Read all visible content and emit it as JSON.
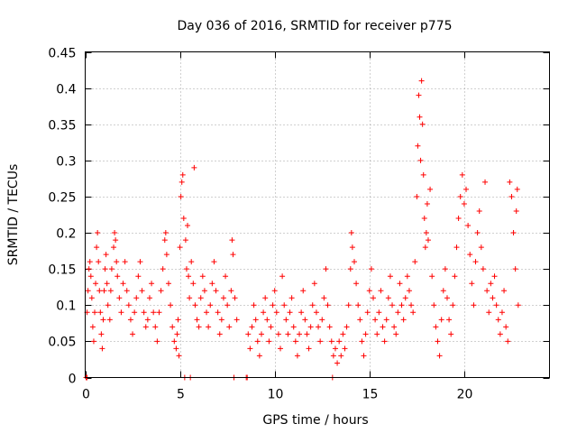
{
  "chart_data": {
    "type": "scatter",
    "title": "Day 036 of 2016, SRMTID for receiver p775",
    "xlabel": "GPS time / hours",
    "ylabel": "SRMTID / TECUs",
    "xlim": [
      0,
      24.5
    ],
    "ylim": [
      0,
      0.45
    ],
    "xticks": [
      0,
      5,
      10,
      15,
      20
    ],
    "xtick_labels": [
      "0",
      "5",
      "10",
      "15",
      "20"
    ],
    "yticks": [
      0,
      0.05,
      0.1,
      0.15,
      0.2,
      0.25,
      0.3,
      0.35,
      0.4,
      0.45
    ],
    "ytick_labels": [
      "0",
      "0.05",
      "0.1",
      "0.15",
      "0.2",
      "0.25",
      "0.3",
      "0.35",
      "0.4",
      "0.45"
    ],
    "grid": true,
    "marker": "+",
    "color": "#ff0000",
    "series": [
      {
        "name": "SRMTID",
        "points": [
          [
            0.05,
            0.0
          ],
          [
            0.1,
            0.0
          ],
          [
            0.1,
            0.09
          ],
          [
            0.15,
            0.12
          ],
          [
            0.2,
            0.15
          ],
          [
            0.25,
            0.16
          ],
          [
            0.3,
            0.14
          ],
          [
            0.35,
            0.11
          ],
          [
            0.4,
            0.07
          ],
          [
            0.45,
            0.05
          ],
          [
            0.5,
            0.09
          ],
          [
            0.55,
            0.13
          ],
          [
            0.6,
            0.18
          ],
          [
            0.65,
            0.2
          ],
          [
            0.7,
            0.16
          ],
          [
            0.75,
            0.12
          ],
          [
            0.8,
            0.09
          ],
          [
            0.85,
            0.06
          ],
          [
            0.9,
            0.04
          ],
          [
            0.95,
            0.08
          ],
          [
            1.0,
            0.12
          ],
          [
            1.05,
            0.15
          ],
          [
            1.1,
            0.17
          ],
          [
            1.15,
            0.13
          ],
          [
            1.2,
            0.1
          ],
          [
            1.3,
            0.08
          ],
          [
            1.35,
            0.12
          ],
          [
            1.4,
            0.15
          ],
          [
            1.5,
            0.18
          ],
          [
            1.55,
            0.2
          ],
          [
            1.6,
            0.19
          ],
          [
            1.65,
            0.16
          ],
          [
            1.7,
            0.14
          ],
          [
            1.8,
            0.11
          ],
          [
            1.9,
            0.09
          ],
          [
            2.0,
            0.13
          ],
          [
            2.1,
            0.16
          ],
          [
            2.2,
            0.12
          ],
          [
            2.3,
            0.1
          ],
          [
            2.4,
            0.08
          ],
          [
            2.5,
            0.06
          ],
          [
            2.6,
            0.09
          ],
          [
            2.7,
            0.11
          ],
          [
            2.8,
            0.14
          ],
          [
            2.9,
            0.16
          ],
          [
            3.0,
            0.12
          ],
          [
            3.1,
            0.09
          ],
          [
            3.2,
            0.07
          ],
          [
            3.3,
            0.08
          ],
          [
            3.4,
            0.11
          ],
          [
            3.5,
            0.13
          ],
          [
            3.6,
            0.09
          ],
          [
            3.7,
            0.07
          ],
          [
            3.8,
            0.05
          ],
          [
            3.9,
            0.09
          ],
          [
            4.0,
            0.12
          ],
          [
            4.1,
            0.15
          ],
          [
            4.2,
            0.19
          ],
          [
            4.25,
            0.2
          ],
          [
            4.3,
            0.17
          ],
          [
            4.4,
            0.13
          ],
          [
            4.5,
            0.1
          ],
          [
            4.6,
            0.07
          ],
          [
            4.7,
            0.05
          ],
          [
            4.8,
            0.04
          ],
          [
            4.85,
            0.06
          ],
          [
            4.9,
            0.08
          ],
          [
            4.95,
            0.03
          ],
          [
            5.0,
            0.18
          ],
          [
            5.05,
            0.25
          ],
          [
            5.1,
            0.27
          ],
          [
            5.15,
            0.28
          ],
          [
            5.2,
            0.22
          ],
          [
            5.25,
            0.0
          ],
          [
            5.3,
            0.19
          ],
          [
            5.35,
            0.15
          ],
          [
            5.4,
            0.21
          ],
          [
            5.45,
            0.14
          ],
          [
            5.5,
            0.11
          ],
          [
            5.55,
            0.0
          ],
          [
            5.6,
            0.16
          ],
          [
            5.7,
            0.13
          ],
          [
            5.75,
            0.29
          ],
          [
            5.8,
            0.1
          ],
          [
            5.9,
            0.08
          ],
          [
            6.0,
            0.07
          ],
          [
            6.1,
            0.11
          ],
          [
            6.2,
            0.14
          ],
          [
            6.3,
            0.12
          ],
          [
            6.4,
            0.09
          ],
          [
            6.5,
            0.07
          ],
          [
            6.6,
            0.1
          ],
          [
            6.7,
            0.13
          ],
          [
            6.8,
            0.16
          ],
          [
            6.9,
            0.12
          ],
          [
            7.0,
            0.09
          ],
          [
            7.1,
            0.06
          ],
          [
            7.2,
            0.08
          ],
          [
            7.3,
            0.11
          ],
          [
            7.4,
            0.14
          ],
          [
            7.5,
            0.1
          ],
          [
            7.6,
            0.07
          ],
          [
            7.7,
            0.12
          ],
          [
            7.75,
            0.19
          ],
          [
            7.8,
            0.17
          ],
          [
            7.85,
            0.0
          ],
          [
            7.9,
            0.11
          ],
          [
            8.0,
            0.08
          ],
          [
            8.5,
            0.0
          ],
          [
            8.55,
            0.0
          ],
          [
            8.6,
            0.06
          ],
          [
            8.7,
            0.04
          ],
          [
            8.8,
            0.07
          ],
          [
            8.9,
            0.1
          ],
          [
            9.0,
            0.08
          ],
          [
            9.1,
            0.05
          ],
          [
            9.2,
            0.03
          ],
          [
            9.3,
            0.06
          ],
          [
            9.4,
            0.09
          ],
          [
            9.5,
            0.11
          ],
          [
            9.6,
            0.08
          ],
          [
            9.7,
            0.05
          ],
          [
            9.8,
            0.07
          ],
          [
            9.9,
            0.1
          ],
          [
            10.0,
            0.12
          ],
          [
            10.1,
            0.09
          ],
          [
            10.2,
            0.06
          ],
          [
            10.3,
            0.04
          ],
          [
            10.4,
            0.14
          ],
          [
            10.5,
            0.1
          ],
          [
            10.6,
            0.08
          ],
          [
            10.7,
            0.06
          ],
          [
            10.8,
            0.09
          ],
          [
            10.9,
            0.11
          ],
          [
            11.0,
            0.07
          ],
          [
            11.1,
            0.05
          ],
          [
            11.2,
            0.03
          ],
          [
            11.3,
            0.06
          ],
          [
            11.4,
            0.09
          ],
          [
            11.5,
            0.12
          ],
          [
            11.6,
            0.08
          ],
          [
            11.7,
            0.06
          ],
          [
            11.8,
            0.04
          ],
          [
            11.9,
            0.07
          ],
          [
            12.0,
            0.1
          ],
          [
            12.1,
            0.13
          ],
          [
            12.2,
            0.09
          ],
          [
            12.3,
            0.07
          ],
          [
            12.4,
            0.05
          ],
          [
            12.5,
            0.08
          ],
          [
            12.6,
            0.11
          ],
          [
            12.7,
            0.15
          ],
          [
            12.8,
            0.1
          ],
          [
            12.9,
            0.07
          ],
          [
            13.0,
            0.05
          ],
          [
            13.05,
            0.0
          ],
          [
            13.1,
            0.03
          ],
          [
            13.2,
            0.04
          ],
          [
            13.3,
            0.02
          ],
          [
            13.4,
            0.05
          ],
          [
            13.5,
            0.03
          ],
          [
            13.6,
            0.06
          ],
          [
            13.7,
            0.04
          ],
          [
            13.8,
            0.07
          ],
          [
            13.9,
            0.1
          ],
          [
            14.0,
            0.15
          ],
          [
            14.05,
            0.2
          ],
          [
            14.1,
            0.18
          ],
          [
            14.2,
            0.16
          ],
          [
            14.3,
            0.13
          ],
          [
            14.4,
            0.1
          ],
          [
            14.5,
            0.08
          ],
          [
            14.6,
            0.05
          ],
          [
            14.7,
            0.03
          ],
          [
            14.8,
            0.06
          ],
          [
            14.9,
            0.09
          ],
          [
            15.0,
            0.12
          ],
          [
            15.1,
            0.15
          ],
          [
            15.2,
            0.11
          ],
          [
            15.3,
            0.08
          ],
          [
            15.4,
            0.06
          ],
          [
            15.5,
            0.09
          ],
          [
            15.6,
            0.12
          ],
          [
            15.7,
            0.07
          ],
          [
            15.8,
            0.05
          ],
          [
            15.9,
            0.08
          ],
          [
            16.0,
            0.11
          ],
          [
            16.1,
            0.14
          ],
          [
            16.2,
            0.1
          ],
          [
            16.3,
            0.07
          ],
          [
            16.4,
            0.06
          ],
          [
            16.5,
            0.09
          ],
          [
            16.6,
            0.13
          ],
          [
            16.7,
            0.1
          ],
          [
            16.8,
            0.08
          ],
          [
            16.9,
            0.11
          ],
          [
            17.0,
            0.14
          ],
          [
            17.1,
            0.12
          ],
          [
            17.2,
            0.1
          ],
          [
            17.3,
            0.09
          ],
          [
            17.4,
            0.16
          ],
          [
            17.5,
            0.25
          ],
          [
            17.55,
            0.32
          ],
          [
            17.6,
            0.39
          ],
          [
            17.65,
            0.36
          ],
          [
            17.7,
            0.3
          ],
          [
            17.75,
            0.41
          ],
          [
            17.8,
            0.35
          ],
          [
            17.85,
            0.28
          ],
          [
            17.9,
            0.22
          ],
          [
            17.95,
            0.18
          ],
          [
            18.0,
            0.2
          ],
          [
            18.05,
            0.24
          ],
          [
            18.1,
            0.19
          ],
          [
            18.2,
            0.26
          ],
          [
            18.3,
            0.14
          ],
          [
            18.4,
            0.1
          ],
          [
            18.5,
            0.07
          ],
          [
            18.6,
            0.05
          ],
          [
            18.7,
            0.03
          ],
          [
            18.8,
            0.08
          ],
          [
            18.9,
            0.12
          ],
          [
            19.0,
            0.15
          ],
          [
            19.1,
            0.11
          ],
          [
            19.2,
            0.08
          ],
          [
            19.3,
            0.06
          ],
          [
            19.4,
            0.1
          ],
          [
            19.5,
            0.14
          ],
          [
            19.6,
            0.18
          ],
          [
            19.7,
            0.22
          ],
          [
            19.8,
            0.25
          ],
          [
            19.9,
            0.28
          ],
          [
            20.0,
            0.24
          ],
          [
            20.1,
            0.26
          ],
          [
            20.2,
            0.21
          ],
          [
            20.3,
            0.17
          ],
          [
            20.4,
            0.13
          ],
          [
            20.5,
            0.1
          ],
          [
            20.6,
            0.16
          ],
          [
            20.7,
            0.2
          ],
          [
            20.8,
            0.23
          ],
          [
            20.9,
            0.18
          ],
          [
            21.0,
            0.15
          ],
          [
            21.1,
            0.27
          ],
          [
            21.2,
            0.12
          ],
          [
            21.3,
            0.09
          ],
          [
            21.4,
            0.13
          ],
          [
            21.5,
            0.11
          ],
          [
            21.6,
            0.14
          ],
          [
            21.7,
            0.1
          ],
          [
            21.8,
            0.08
          ],
          [
            21.9,
            0.06
          ],
          [
            22.0,
            0.09
          ],
          [
            22.1,
            0.12
          ],
          [
            22.2,
            0.07
          ],
          [
            22.3,
            0.05
          ],
          [
            22.4,
            0.27
          ],
          [
            22.5,
            0.25
          ],
          [
            22.6,
            0.2
          ],
          [
            22.7,
            0.15
          ],
          [
            22.75,
            0.23
          ],
          [
            22.8,
            0.26
          ],
          [
            22.85,
            0.1
          ]
        ]
      }
    ]
  }
}
